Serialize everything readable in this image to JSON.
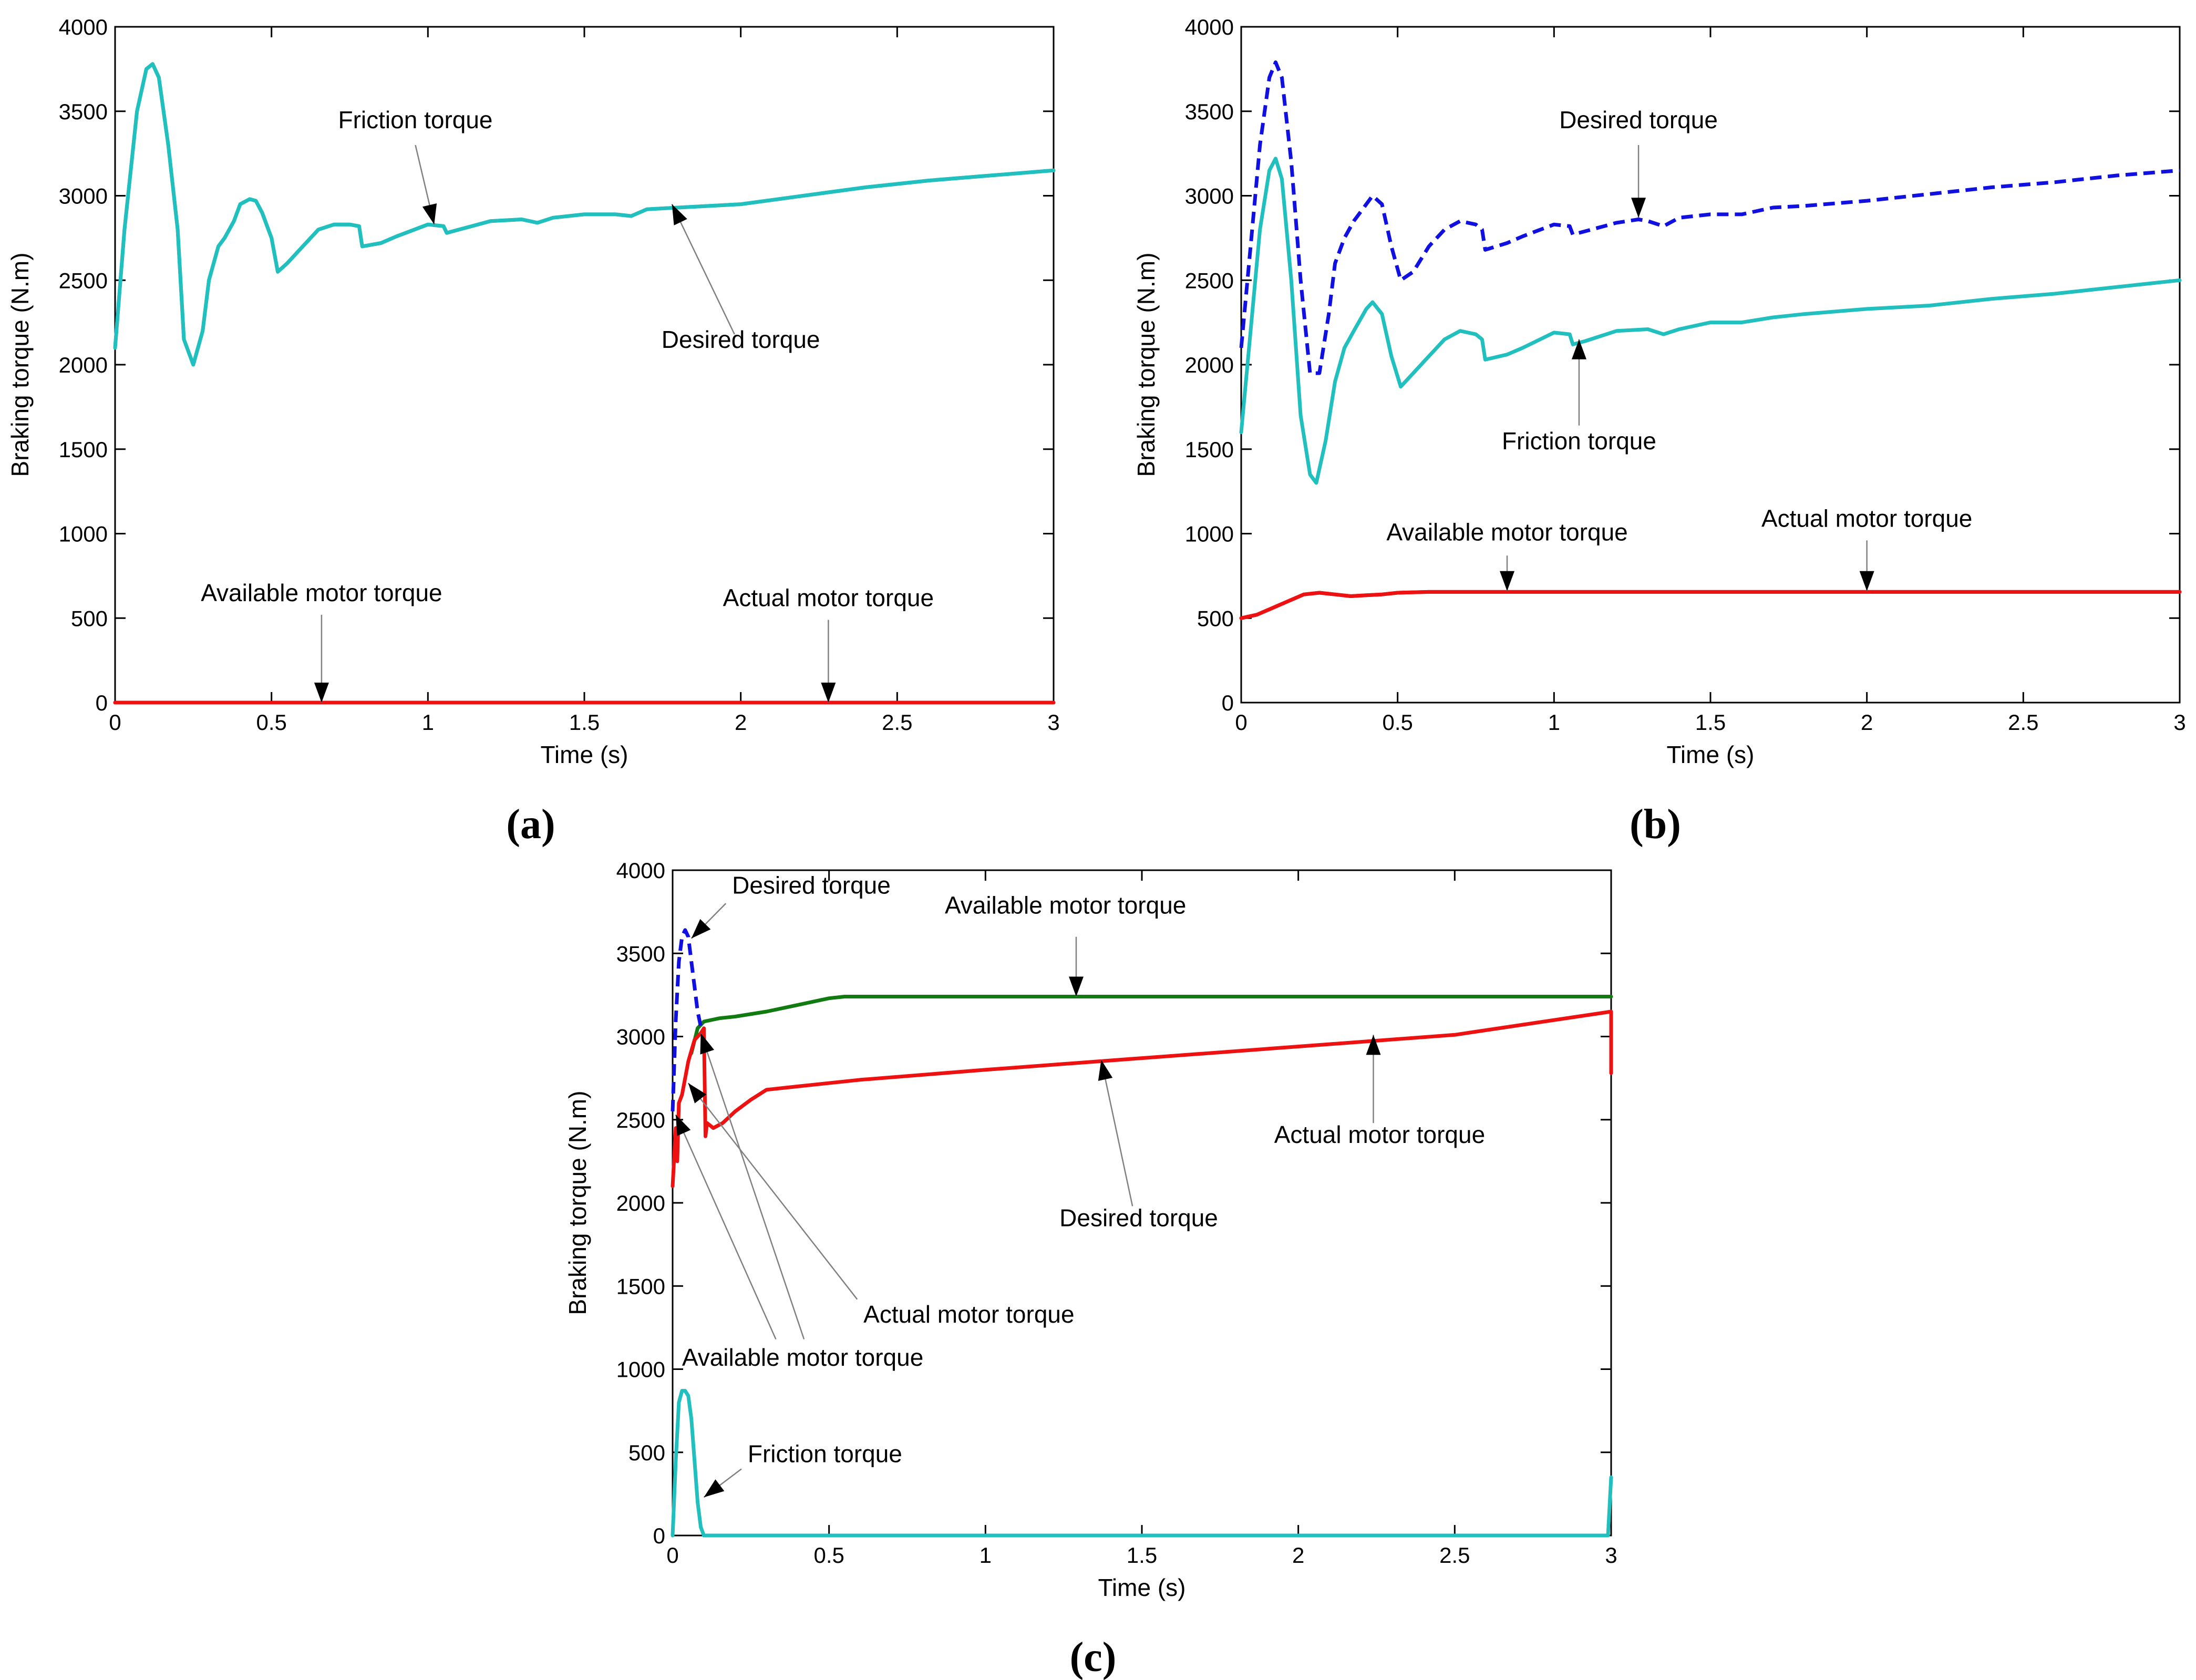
{
  "colors": {
    "cyan": "#22BFBF",
    "blue": "#1010E0",
    "red": "#EE1111",
    "green": "#117A11"
  },
  "chart_data": [
    {
      "id": "a",
      "panel_label": "(a)",
      "type": "line",
      "xlabel": "Time (s)",
      "ylabel": "Braking torque (N.m)",
      "xlim": [
        0,
        3
      ],
      "ylim": [
        0,
        4000
      ],
      "xticks": [
        0,
        0.5,
        1,
        1.5,
        2,
        2.5,
        3
      ],
      "xtick_labels": [
        "0",
        "0.5",
        "1",
        "1.5",
        "2",
        "2.5",
        "3"
      ],
      "yticks": [
        0,
        500,
        1000,
        1500,
        2000,
        2500,
        3000,
        3500,
        4000
      ],
      "ytick_labels": [
        "0",
        "500",
        "1000",
        "1500",
        "2000",
        "2500",
        "3000",
        "3500",
        "4000"
      ],
      "series": [
        {
          "name": "Desired torque",
          "color": "cyan",
          "dash": false,
          "x": [
            0,
            0.03,
            0.07,
            0.1,
            0.12,
            0.14,
            0.17,
            0.2,
            0.22,
            0.25,
            0.28,
            0.3,
            0.33,
            0.35,
            0.38,
            0.4,
            0.43,
            0.45,
            0.47,
            0.5,
            0.52,
            0.55,
            0.6,
            0.65,
            0.7,
            0.75,
            0.78,
            0.79,
            0.85,
            0.9,
            1.0,
            1.05,
            1.06,
            1.1,
            1.2,
            1.3,
            1.35,
            1.4,
            1.5,
            1.6,
            1.65,
            1.7,
            1.8,
            2.0,
            2.2,
            2.4,
            2.6,
            2.8,
            3.0
          ],
          "y": [
            2100,
            2800,
            3500,
            3750,
            3780,
            3700,
            3300,
            2800,
            2150,
            2000,
            2200,
            2500,
            2700,
            2750,
            2850,
            2950,
            2980,
            2970,
            2900,
            2750,
            2550,
            2600,
            2700,
            2800,
            2830,
            2830,
            2820,
            2700,
            2720,
            2760,
            2830,
            2820,
            2780,
            2800,
            2850,
            2860,
            2840,
            2870,
            2890,
            2890,
            2880,
            2920,
            2930,
            2950,
            3000,
            3050,
            3090,
            3120,
            3150
          ]
        },
        {
          "name": "Friction torque",
          "color": "cyan",
          "dash": false,
          "x": [
            0,
            0.03,
            0.07,
            0.1,
            0.12,
            0.14,
            0.17,
            0.2,
            0.22,
            0.25,
            0.28,
            0.3,
            0.33,
            0.35,
            0.38,
            0.4,
            0.43,
            0.45,
            0.47,
            0.5,
            0.52,
            0.55,
            0.6,
            0.65,
            0.7,
            0.75,
            0.78,
            0.79,
            0.85,
            0.9,
            1.0,
            1.05,
            1.06,
            1.1,
            1.2,
            1.3,
            1.35,
            1.4,
            1.5,
            1.6,
            1.65,
            1.7,
            1.8,
            2.0,
            2.2,
            2.4,
            2.6,
            2.8,
            3.0
          ],
          "y": [
            2100,
            2800,
            3500,
            3750,
            3780,
            3700,
            3300,
            2800,
            2150,
            2000,
            2200,
            2500,
            2700,
            2750,
            2850,
            2950,
            2980,
            2970,
            2900,
            2750,
            2550,
            2600,
            2700,
            2800,
            2830,
            2830,
            2820,
            2700,
            2720,
            2760,
            2830,
            2820,
            2780,
            2800,
            2850,
            2860,
            2840,
            2870,
            2890,
            2890,
            2880,
            2920,
            2930,
            2950,
            3000,
            3050,
            3090,
            3120,
            3150
          ]
        },
        {
          "name": "Available motor torque",
          "color": "red",
          "dash": false,
          "x": [
            0,
            3
          ],
          "y": [
            0,
            0
          ]
        },
        {
          "name": "Actual motor torque",
          "color": "red",
          "dash": false,
          "x": [
            0,
            3
          ],
          "y": [
            0,
            0
          ]
        }
      ],
      "annotations": [
        {
          "text": "Friction torque",
          "tx": 0.96,
          "ty": 3400,
          "anchor": "middle",
          "ax": 1.02,
          "ay": 2830,
          "label_end": [
            0.96,
            3300
          ]
        },
        {
          "text": "Desired torque",
          "tx": 2.0,
          "ty": 2100,
          "anchor": "middle",
          "ax": 1.78,
          "ay": 2950,
          "label_end": [
            1.98,
            2180
          ]
        },
        {
          "text": "Available motor torque",
          "tx": 0.66,
          "ty": 600,
          "anchor": "middle",
          "ax": 0.66,
          "ay": 0,
          "label_end": [
            0.66,
            520
          ]
        },
        {
          "text": "Actual motor torque",
          "tx": 2.28,
          "ty": 570,
          "anchor": "middle",
          "ax": 2.28,
          "ay": 0,
          "label_end": [
            2.28,
            490
          ]
        }
      ]
    },
    {
      "id": "b",
      "panel_label": "(b)",
      "type": "line",
      "xlabel": "Time (s)",
      "ylabel": "Braking torque (N.m)",
      "xlim": [
        0,
        3
      ],
      "ylim": [
        0,
        4000
      ],
      "xticks": [
        0,
        0.5,
        1,
        1.5,
        2,
        2.5,
        3
      ],
      "xtick_labels": [
        "0",
        "0.5",
        "1",
        "1.5",
        "2",
        "2.5",
        "3"
      ],
      "yticks": [
        0,
        500,
        1000,
        1500,
        2000,
        2500,
        3000,
        3500,
        4000
      ],
      "ytick_labels": [
        "0",
        "500",
        "1000",
        "1500",
        "2000",
        "2500",
        "3000",
        "3500",
        "4000"
      ],
      "series": [
        {
          "name": "Desired torque",
          "color": "blue",
          "dash": true,
          "x": [
            0,
            0.03,
            0.06,
            0.09,
            0.11,
            0.13,
            0.16,
            0.19,
            0.22,
            0.25,
            0.28,
            0.3,
            0.33,
            0.36,
            0.4,
            0.42,
            0.45,
            0.48,
            0.51,
            0.55,
            0.6,
            0.65,
            0.7,
            0.75,
            0.77,
            0.78,
            0.85,
            0.9,
            1.0,
            1.05,
            1.06,
            1.1,
            1.2,
            1.27,
            1.3,
            1.35,
            1.4,
            1.5,
            1.6,
            1.7,
            1.8,
            2.0,
            2.2,
            2.4,
            2.6,
            2.8,
            3.0
          ],
          "y": [
            2100,
            2700,
            3300,
            3700,
            3790,
            3700,
            3200,
            2500,
            1950,
            1950,
            2300,
            2600,
            2750,
            2850,
            2950,
            3000,
            2950,
            2700,
            2500,
            2550,
            2700,
            2800,
            2850,
            2830,
            2800,
            2680,
            2720,
            2760,
            2830,
            2820,
            2770,
            2790,
            2840,
            2860,
            2850,
            2820,
            2870,
            2890,
            2890,
            2930,
            2940,
            2970,
            3010,
            3050,
            3080,
            3120,
            3150
          ]
        },
        {
          "name": "Friction torque",
          "color": "cyan",
          "dash": false,
          "x": [
            0,
            0.03,
            0.06,
            0.09,
            0.11,
            0.13,
            0.16,
            0.19,
            0.22,
            0.24,
            0.27,
            0.3,
            0.33,
            0.36,
            0.4,
            0.42,
            0.45,
            0.48,
            0.51,
            0.55,
            0.6,
            0.65,
            0.7,
            0.75,
            0.77,
            0.78,
            0.85,
            0.9,
            1.0,
            1.05,
            1.06,
            1.1,
            1.2,
            1.3,
            1.35,
            1.4,
            1.5,
            1.6,
            1.7,
            1.8,
            2.0,
            2.2,
            2.4,
            2.6,
            2.8,
            3.0
          ],
          "y": [
            1600,
            2200,
            2800,
            3150,
            3220,
            3100,
            2500,
            1700,
            1350,
            1300,
            1550,
            1900,
            2100,
            2200,
            2330,
            2370,
            2300,
            2050,
            1870,
            1950,
            2050,
            2150,
            2200,
            2180,
            2150,
            2030,
            2060,
            2100,
            2190,
            2180,
            2120,
            2140,
            2200,
            2210,
            2180,
            2210,
            2250,
            2250,
            2280,
            2300,
            2330,
            2350,
            2390,
            2420,
            2460,
            2500
          ]
        },
        {
          "name": "Available motor torque",
          "color": "red",
          "dash": false,
          "x": [
            0,
            0.05,
            0.1,
            0.15,
            0.2,
            0.25,
            0.3,
            0.35,
            0.4,
            0.45,
            0.5,
            0.6,
            1.0,
            2.0,
            3.0
          ],
          "y": [
            500,
            520,
            560,
            600,
            640,
            650,
            640,
            630,
            635,
            640,
            650,
            655,
            655,
            655,
            655
          ]
        },
        {
          "name": "Actual motor torque",
          "color": "red",
          "dash": false,
          "x": [
            0,
            0.05,
            0.1,
            0.15,
            0.2,
            0.25,
            0.3,
            0.35,
            0.4,
            0.45,
            0.5,
            0.6,
            1.0,
            2.0,
            3.0
          ],
          "y": [
            500,
            520,
            560,
            600,
            640,
            650,
            640,
            630,
            635,
            640,
            650,
            655,
            655,
            655,
            655
          ]
        }
      ],
      "annotations": [
        {
          "text": "Desired torque",
          "tx": 1.27,
          "ty": 3400,
          "anchor": "middle",
          "ax": 1.27,
          "ay": 2870,
          "label_end": [
            1.27,
            3300
          ]
        },
        {
          "text": "Friction torque",
          "tx": 1.08,
          "ty": 1500,
          "anchor": "middle",
          "ax": 1.08,
          "ay": 2150,
          "label_end": [
            1.08,
            1640
          ]
        },
        {
          "text": "Available motor torque",
          "tx": 0.85,
          "ty": 960,
          "anchor": "middle",
          "ax": 0.85,
          "ay": 660,
          "label_end": [
            0.85,
            870
          ]
        },
        {
          "text": "Actual motor torque",
          "tx": 2.0,
          "ty": 1040,
          "anchor": "middle",
          "ax": 2.0,
          "ay": 660,
          "label_end": [
            2.0,
            960
          ]
        }
      ]
    },
    {
      "id": "c",
      "panel_label": "(c)",
      "type": "line",
      "xlabel": "Time (s)",
      "ylabel": "Braking torque (N.m)",
      "xlim": [
        0,
        3
      ],
      "ylim": [
        0,
        4000
      ],
      "xticks": [
        0,
        0.5,
        1,
        1.5,
        2,
        2.5,
        3
      ],
      "xtick_labels": [
        "0",
        "0.5",
        "1",
        "1.5",
        "2",
        "2.5",
        "3"
      ],
      "yticks": [
        0,
        500,
        1000,
        1500,
        2000,
        2500,
        3000,
        3500,
        4000
      ],
      "ytick_labels": [
        "0",
        "500",
        "1000",
        "1500",
        "2000",
        "2500",
        "3000",
        "3500",
        "4000"
      ],
      "series": [
        {
          "name": "Available motor torque",
          "color": "green",
          "dash": false,
          "x": [
            0.06,
            0.08,
            0.1,
            0.15,
            0.2,
            0.3,
            0.4,
            0.5,
            0.55,
            1.0,
            2.0,
            3.0
          ],
          "y": [
            2900,
            3050,
            3090,
            3110,
            3120,
            3150,
            3190,
            3230,
            3240,
            3240,
            3240,
            3240
          ]
        },
        {
          "name": "Desired torque",
          "color": "blue",
          "dash": true,
          "x": [
            0,
            0.01,
            0.02,
            0.03,
            0.04,
            0.05,
            0.06,
            0.07,
            0.08,
            0.09,
            0.1
          ],
          "y": [
            2550,
            3100,
            3450,
            3600,
            3640,
            3600,
            3450,
            3300,
            3150,
            3060,
            3050
          ]
        },
        {
          "name": "Actual motor torque",
          "color": "red",
          "dash": false,
          "x": [
            0,
            0.01,
            0.015,
            0.02,
            0.03,
            0.05,
            0.07,
            0.09,
            0.1,
            0.105,
            0.11,
            0.13,
            0.16,
            0.2,
            0.25,
            0.3,
            0.4,
            0.6,
            1.0,
            1.5,
            2.0,
            2.5,
            3.0,
            3.0
          ],
          "y": [
            2100,
            2450,
            2250,
            2600,
            2650,
            2850,
            2980,
            3020,
            3050,
            2400,
            2480,
            2450,
            2480,
            2550,
            2620,
            2680,
            2700,
            2740,
            2800,
            2870,
            2940,
            3010,
            3150,
            2780
          ]
        },
        {
          "name": "Friction torque",
          "color": "cyan",
          "dash": false,
          "x": [
            0,
            0.01,
            0.02,
            0.03,
            0.04,
            0.05,
            0.06,
            0.07,
            0.08,
            0.09,
            0.1,
            0.5,
            1.0,
            2.0,
            2.99,
            3.0
          ],
          "y": [
            0,
            450,
            800,
            870,
            870,
            840,
            700,
            450,
            200,
            50,
            0,
            0,
            0,
            0,
            0,
            350
          ]
        }
      ],
      "annotations": [
        {
          "text": "Desired torque",
          "tx": 0.19,
          "ty": 3860,
          "anchor": "start",
          "ax": 0.06,
          "ay": 3590,
          "label_end": [
            0.17,
            3800
          ]
        },
        {
          "text": "Available motor torque",
          "tx": 0.87,
          "ty": 3740,
          "anchor": "start",
          "ax": 1.29,
          "ay": 3240,
          "label_end": [
            1.29,
            3600
          ]
        },
        {
          "text": "Desired torque",
          "tx": 1.49,
          "ty": 1860,
          "anchor": "middle",
          "ax": 1.37,
          "ay": 2860,
          "label_end": [
            1.47,
            1980
          ]
        },
        {
          "text": "Actual motor torque",
          "tx": 2.26,
          "ty": 2360,
          "anchor": "middle",
          "ax": 2.24,
          "ay": 3010,
          "label_end": [
            2.24,
            2480
          ]
        },
        {
          "text": "Actual motor torque",
          "tx": 0.61,
          "ty": 1280,
          "anchor": "start",
          "ax": 0.05,
          "ay": 2720,
          "label_end": [
            0.59,
            1420
          ]
        },
        {
          "text": "Available motor torque",
          "tx": 0.03,
          "ty": 1020,
          "anchor": "start",
          "ax": 0.09,
          "ay": 3020,
          "label_end": [
            0.42,
            1180
          ]
        },
        {
          "text": "Friction torque",
          "tx": 0.24,
          "ty": 440,
          "anchor": "start",
          "ax": 0.1,
          "ay": 230,
          "label_end": [
            0.22,
            400
          ]
        },
        {
          "text": "",
          "tx": 0,
          "ty": 0,
          "anchor": "start",
          "ax": 0.01,
          "ay": 2530,
          "label_end": [
            0.33,
            1180
          ],
          "leader_only": true
        }
      ]
    }
  ]
}
